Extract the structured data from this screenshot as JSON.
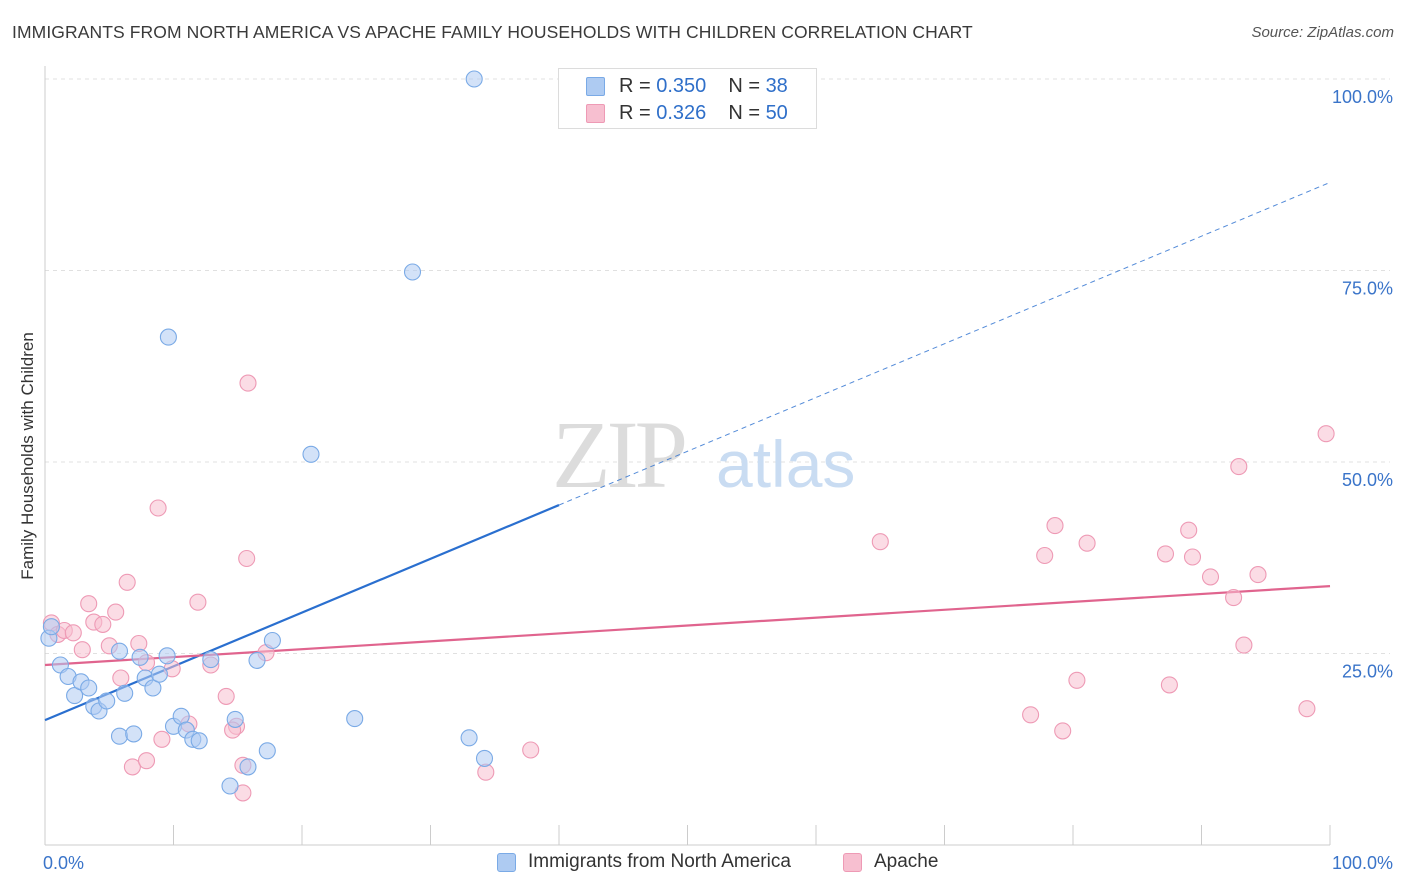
{
  "title": "IMMIGRANTS FROM NORTH AMERICA VS APACHE FAMILY HOUSEHOLDS WITH CHILDREN CORRELATION CHART",
  "source": "Source: ZipAtlas.com",
  "watermark": {
    "zip": "ZIP",
    "atlas": "atlas"
  },
  "legend_stats": [
    {
      "r_label": "R =",
      "r_value": "0.350",
      "n_label": "N =",
      "n_value": "38"
    },
    {
      "r_label": "R =",
      "r_value": "0.326",
      "n_label": "N =",
      "n_value": "50"
    }
  ],
  "colors": {
    "blue_fill": "#aecbf2",
    "blue_stroke": "#7aaae6",
    "blue_line": "#2a6fcf",
    "pink_fill": "#f7bfd0",
    "pink_stroke": "#ee9ab5",
    "pink_line": "#e0648e",
    "tick_text": "#3a74c9",
    "grid": "#e0e0e0"
  },
  "chart_data": {
    "type": "scatter",
    "title": "IMMIGRANTS FROM NORTH AMERICA VS APACHE FAMILY HOUSEHOLDS WITH CHILDREN CORRELATION CHART",
    "xlabel": "",
    "ylabel": "Family Households with Children",
    "xlim": [
      0,
      100
    ],
    "ylim": [
      0,
      100
    ],
    "x_tick_labels": [
      "0.0%",
      "100.0%"
    ],
    "y_tick_labels": [
      "25.0%",
      "50.0%",
      "75.0%",
      "100.0%"
    ],
    "y_tick_values": [
      25,
      50,
      75,
      100
    ],
    "grid": true,
    "legend_placement": "top-center",
    "series": [
      {
        "name": "Immigrants from North America",
        "r": 0.35,
        "n": 38,
        "points": [
          [
            0.3,
            27.0
          ],
          [
            0.5,
            28.5
          ],
          [
            1.2,
            23.5
          ],
          [
            1.8,
            22.0
          ],
          [
            2.3,
            19.5
          ],
          [
            2.8,
            21.3
          ],
          [
            3.4,
            20.5
          ],
          [
            3.8,
            18.1
          ],
          [
            4.2,
            17.5
          ],
          [
            4.8,
            18.8
          ],
          [
            5.8,
            25.3
          ],
          [
            5.8,
            14.2
          ],
          [
            6.2,
            19.8
          ],
          [
            6.9,
            14.5
          ],
          [
            7.4,
            24.5
          ],
          [
            7.8,
            21.8
          ],
          [
            8.4,
            20.5
          ],
          [
            8.9,
            22.3
          ],
          [
            9.5,
            24.7
          ],
          [
            10.0,
            15.5
          ],
          [
            10.6,
            16.8
          ],
          [
            11.0,
            15.0
          ],
          [
            11.5,
            13.8
          ],
          [
            12.0,
            13.6
          ],
          [
            12.9,
            24.2
          ],
          [
            14.4,
            7.7
          ],
          [
            14.8,
            16.4
          ],
          [
            15.8,
            10.2
          ],
          [
            16.5,
            24.1
          ],
          [
            17.7,
            26.7
          ],
          [
            17.3,
            12.3
          ],
          [
            9.6,
            66.3
          ],
          [
            20.7,
            51.0
          ],
          [
            24.1,
            16.5
          ],
          [
            28.6,
            74.8
          ],
          [
            33.4,
            100.0
          ],
          [
            33.0,
            14.0
          ],
          [
            34.2,
            11.3
          ]
        ],
        "trend": {
          "x0": 0,
          "y0": 16.3,
          "x1": 100,
          "y1": 86.5,
          "solid_until": 40
        }
      },
      {
        "name": "Apache",
        "r": 0.326,
        "n": 50,
        "points": [
          [
            0.5,
            29.0
          ],
          [
            1.0,
            27.5
          ],
          [
            1.5,
            28.0
          ],
          [
            2.2,
            27.7
          ],
          [
            2.9,
            25.5
          ],
          [
            3.4,
            31.5
          ],
          [
            3.8,
            29.1
          ],
          [
            4.5,
            28.8
          ],
          [
            5.0,
            26.0
          ],
          [
            5.5,
            30.4
          ],
          [
            5.9,
            21.8
          ],
          [
            6.4,
            34.3
          ],
          [
            6.8,
            10.2
          ],
          [
            7.3,
            26.3
          ],
          [
            7.9,
            23.8
          ],
          [
            7.9,
            11.0
          ],
          [
            8.8,
            44.0
          ],
          [
            9.1,
            13.8
          ],
          [
            9.9,
            23.0
          ],
          [
            11.2,
            15.8
          ],
          [
            11.9,
            31.7
          ],
          [
            12.9,
            23.5
          ],
          [
            14.1,
            19.4
          ],
          [
            14.9,
            15.5
          ],
          [
            14.6,
            15.0
          ],
          [
            15.4,
            10.4
          ],
          [
            15.7,
            37.4
          ],
          [
            15.8,
            60.3
          ],
          [
            15.4,
            6.8
          ],
          [
            17.2,
            25.1
          ],
          [
            34.3,
            9.5
          ],
          [
            37.8,
            12.4
          ],
          [
            65.0,
            39.6
          ],
          [
            76.7,
            17.0
          ],
          [
            77.8,
            37.8
          ],
          [
            78.6,
            41.7
          ],
          [
            79.2,
            14.9
          ],
          [
            80.3,
            21.5
          ],
          [
            81.1,
            39.4
          ],
          [
            87.2,
            38.0
          ],
          [
            87.5,
            20.9
          ],
          [
            89.0,
            41.1
          ],
          [
            89.3,
            37.6
          ],
          [
            90.7,
            35.0
          ],
          [
            92.5,
            32.3
          ],
          [
            92.9,
            49.4
          ],
          [
            93.3,
            26.1
          ],
          [
            94.4,
            35.3
          ],
          [
            98.2,
            17.8
          ],
          [
            99.7,
            53.7
          ]
        ],
        "trend": {
          "x0": 0,
          "y0": 23.5,
          "x1": 100,
          "y1": 33.8
        }
      }
    ]
  }
}
